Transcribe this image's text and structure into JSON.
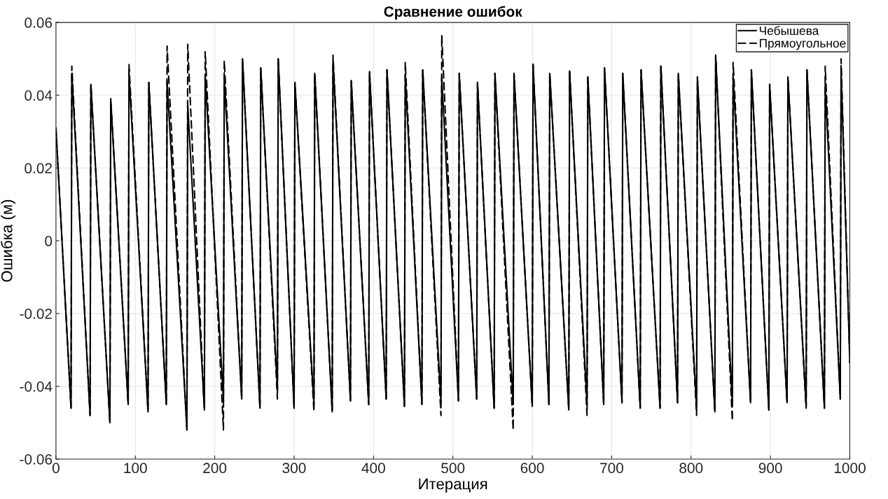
{
  "chart_data": {
    "type": "line",
    "title": "Сравнение ошибок",
    "xlabel": "Итерация",
    "ylabel": "Ошибка (м)",
    "xlim": [
      0,
      1000
    ],
    "xticks": [
      0,
      100,
      200,
      300,
      400,
      500,
      600,
      700,
      800,
      900,
      1000
    ],
    "ylim": [
      -0.06,
      0.06
    ],
    "yticks": [
      -0.06,
      -0.04,
      -0.02,
      0,
      0.02,
      0.04,
      0.06
    ],
    "grid": true,
    "legend": "top right",
    "marker": "none",
    "series": [
      {
        "name": "Чебышева",
        "color": "#000000",
        "line_style": "solid",
        "x": [
          0,
          19,
          20,
          43,
          44,
          68,
          69,
          91,
          92,
          116,
          117,
          139,
          140,
          165,
          166,
          187,
          188,
          211,
          212,
          234,
          235,
          257,
          258,
          279,
          280,
          300,
          301,
          325,
          326,
          348,
          349,
          371,
          372,
          394,
          395,
          416,
          417,
          439,
          440,
          461,
          462,
          485,
          486,
          507,
          508,
          530,
          531,
          552,
          553,
          576,
          577,
          600,
          601,
          621,
          622,
          646,
          647,
          669,
          670,
          690,
          691,
          713,
          714,
          736,
          737,
          761,
          762,
          783,
          784,
          807,
          808,
          830,
          831,
          852,
          853,
          875,
          876,
          898,
          899,
          921,
          922,
          945,
          946,
          968,
          969,
          988,
          989,
          1000
        ],
        "values": [
          0.031,
          -0.046,
          0.046,
          -0.048,
          0.043,
          -0.05,
          0.039,
          -0.045,
          0.046,
          -0.047,
          0.0435,
          -0.045,
          0.044,
          -0.052,
          0.0375,
          -0.0465,
          0.0455,
          -0.044,
          0.045,
          -0.0435,
          0.05,
          -0.046,
          0.0475,
          -0.041,
          0.05,
          -0.046,
          0.0435,
          -0.045,
          0.046,
          -0.047,
          0.0495,
          -0.044,
          0.044,
          -0.045,
          0.0465,
          -0.0435,
          0.047,
          -0.0455,
          0.0455,
          -0.045,
          0.047,
          -0.0445,
          0.045,
          -0.044,
          0.046,
          -0.0435,
          0.0435,
          -0.046,
          0.046,
          -0.045,
          0.046,
          -0.0455,
          0.0485,
          -0.045,
          0.046,
          -0.0465,
          0.0465,
          -0.045,
          0.045,
          -0.045,
          0.0475,
          -0.0445,
          0.046,
          -0.046,
          0.047,
          -0.046,
          0.048,
          -0.0445,
          0.046,
          -0.046,
          0.045,
          -0.047,
          0.051,
          -0.045,
          0.045,
          -0.0445,
          0.047,
          -0.0465,
          0.043,
          -0.0445,
          0.045,
          -0.0455,
          0.047,
          -0.046,
          0.043,
          -0.0435,
          0.047,
          -0.0335
        ]
      },
      {
        "name": "Прямоугольное",
        "color": "#000000",
        "line_style": "dashed",
        "x": [
          0,
          19,
          20,
          43,
          44,
          68,
          69,
          91,
          92,
          116,
          117,
          139,
          140,
          165,
          166,
          187,
          188,
          211,
          212,
          234,
          235,
          257,
          258,
          279,
          280,
          300,
          301,
          325,
          326,
          348,
          349,
          371,
          372,
          394,
          395,
          416,
          417,
          439,
          440,
          461,
          462,
          485,
          486,
          507,
          508,
          530,
          531,
          552,
          553,
          576,
          577,
          600,
          601,
          621,
          622,
          646,
          647,
          669,
          670,
          690,
          691,
          713,
          714,
          736,
          737,
          761,
          762,
          783,
          784,
          807,
          808,
          830,
          831,
          852,
          853,
          875,
          876,
          898,
          899,
          921,
          922,
          945,
          946,
          968,
          969,
          988,
          989,
          1000
        ],
        "values": [
          0.031,
          -0.046,
          0.048,
          -0.048,
          0.043,
          -0.05,
          0.039,
          -0.045,
          0.0485,
          -0.047,
          0.0435,
          -0.045,
          0.0535,
          -0.052,
          0.054,
          -0.0465,
          0.052,
          -0.052,
          0.0495,
          -0.0435,
          0.05,
          -0.046,
          0.0475,
          -0.0435,
          0.05,
          -0.046,
          0.0435,
          -0.047,
          0.046,
          -0.047,
          0.051,
          -0.044,
          0.044,
          -0.045,
          0.0465,
          -0.0435,
          0.047,
          -0.0455,
          0.049,
          -0.045,
          0.047,
          -0.048,
          0.0565,
          -0.044,
          0.046,
          -0.0435,
          0.0435,
          -0.046,
          0.046,
          -0.052,
          0.046,
          -0.0455,
          0.0485,
          -0.045,
          0.046,
          -0.0465,
          0.047,
          -0.048,
          0.045,
          -0.045,
          0.0475,
          -0.0445,
          0.046,
          -0.046,
          0.047,
          -0.046,
          0.048,
          -0.0445,
          0.046,
          -0.048,
          0.045,
          -0.047,
          0.051,
          -0.0495,
          0.049,
          -0.0445,
          0.047,
          -0.0465,
          0.043,
          -0.0445,
          0.045,
          -0.046,
          0.047,
          -0.046,
          0.048,
          -0.0435,
          0.05,
          -0.0335
        ]
      }
    ]
  }
}
